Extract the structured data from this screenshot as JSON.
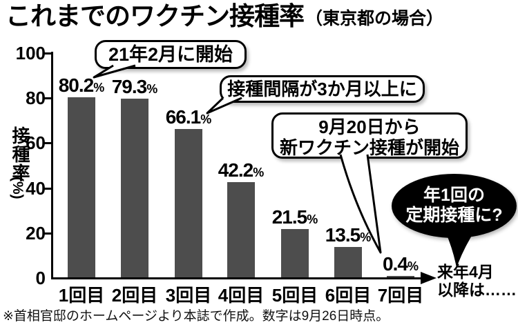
{
  "title": {
    "main": "これまでのワクチン接種率",
    "note": "（東京都の場合）"
  },
  "y_axis": {
    "label": "接種率",
    "unit": "(%)"
  },
  "chart_data": {
    "type": "bar",
    "title": "これまでのワクチン接種率（東京都の場合）",
    "categories": [
      "1回目",
      "2回目",
      "3回目",
      "4回目",
      "5回目",
      "6回目",
      "7回目"
    ],
    "values": [
      80.2,
      79.3,
      66.1,
      42.2,
      21.5,
      13.5,
      0.4
    ],
    "value_suffix": "%",
    "ylabel": "接種率(%)",
    "yticks": [
      100,
      80,
      60,
      40,
      20,
      0
    ],
    "ylim": [
      0,
      100
    ],
    "bar_color": "#4d4d4d",
    "grid": false,
    "legend": false,
    "annotations": [
      {
        "target": "1回目",
        "text": "21年2月に開始"
      },
      {
        "target": "3回目",
        "text": "接種間隔が3か月以上に"
      },
      {
        "target": "7回目",
        "text": "9月20日から新ワクチン接種が開始"
      },
      {
        "target": "来年4月以降",
        "text": "年1回の定期接種に?"
      }
    ]
  },
  "callouts": {
    "start": "21年2月に開始",
    "interval": "接種間隔が3か月以上に",
    "new_vaccine_line1": "9月20日から",
    "new_vaccine_line2": "新ワクチン接種が開始",
    "annual_line1": "年1回の",
    "annual_line2": "定期接種に?"
  },
  "future_note": {
    "line1": "来年4月",
    "line2": "以降は……"
  },
  "footnote": "※首相官邸のホームページより本誌で作成。数字は9月26日時点。"
}
